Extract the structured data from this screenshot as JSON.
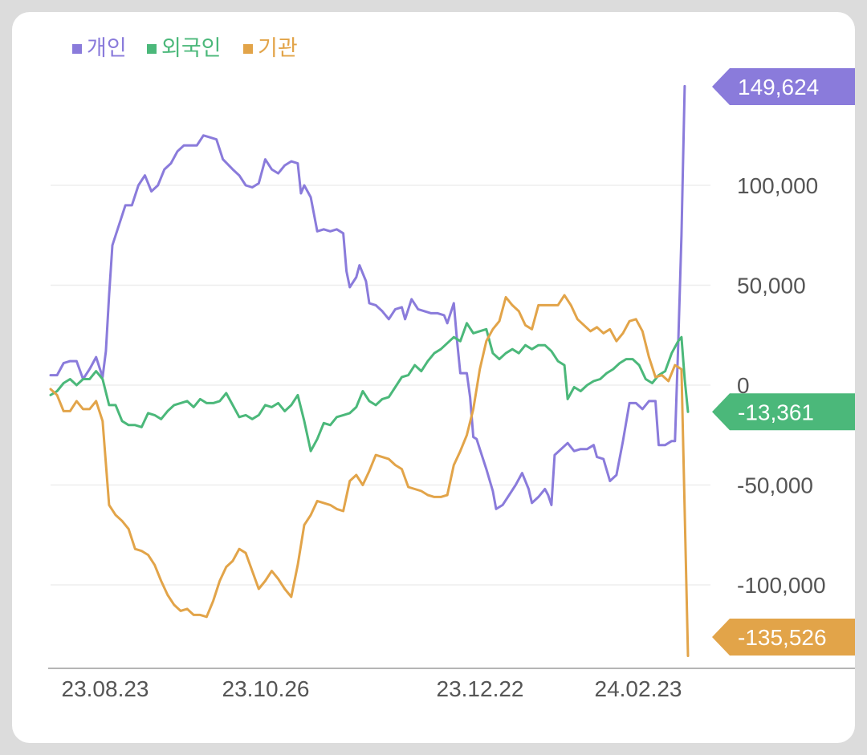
{
  "chart_data": {
    "type": "line",
    "legend_position": "top-left",
    "grid": true,
    "ylim": [
      -140000,
      150000
    ],
    "y_ticks": [
      {
        "value": 100000,
        "label": "100,000"
      },
      {
        "value": 50000,
        "label": "50,000"
      },
      {
        "value": 0,
        "label": "0"
      },
      {
        "value": -50000,
        "label": "-50,000"
      },
      {
        "value": -100000,
        "label": "-100,000"
      }
    ],
    "x_ticks": [
      {
        "index": 0,
        "label": "23.08.23"
      },
      {
        "index": 45,
        "label": "23.10.26"
      },
      {
        "index": 100,
        "label": "23.12.22"
      },
      {
        "index": 140,
        "label": "24.02.23"
      }
    ],
    "n_points": 165,
    "series": [
      {
        "name": "개인",
        "color": "#8a7bdb",
        "last_label": "149,624",
        "keypoints": [
          [
            0,
            5000
          ],
          [
            2,
            5000
          ],
          [
            4,
            11000
          ],
          [
            6,
            12000
          ],
          [
            8,
            12000
          ],
          [
            10,
            3000
          ],
          [
            12,
            8000
          ],
          [
            14,
            14000
          ],
          [
            16,
            4000
          ],
          [
            17,
            17000
          ],
          [
            18,
            45000
          ],
          [
            19,
            70000
          ],
          [
            21,
            80000
          ],
          [
            23,
            90000
          ],
          [
            25,
            90000
          ],
          [
            27,
            100000
          ],
          [
            29,
            105000
          ],
          [
            31,
            97000
          ],
          [
            33,
            100000
          ],
          [
            35,
            108000
          ],
          [
            37,
            111000
          ],
          [
            39,
            117000
          ],
          [
            41,
            120000
          ],
          [
            43,
            120000
          ],
          [
            45,
            120000
          ],
          [
            47,
            125000
          ],
          [
            49,
            124000
          ],
          [
            51,
            123000
          ],
          [
            53,
            113000
          ],
          [
            56,
            108000
          ],
          [
            58,
            105000
          ],
          [
            60,
            100000
          ],
          [
            62,
            99000
          ],
          [
            64,
            101000
          ],
          [
            66,
            113000
          ],
          [
            68,
            108000
          ],
          [
            70,
            106000
          ],
          [
            72,
            110000
          ],
          [
            74,
            112000
          ],
          [
            76,
            111000
          ],
          [
            77,
            96000
          ],
          [
            78,
            100000
          ],
          [
            80,
            94000
          ],
          [
            82,
            77000
          ],
          [
            84,
            78000
          ],
          [
            86,
            77000
          ],
          [
            88,
            78000
          ],
          [
            90,
            76000
          ],
          [
            91,
            57000
          ],
          [
            92,
            49000
          ],
          [
            94,
            54000
          ],
          [
            95,
            60000
          ],
          [
            97,
            52000
          ],
          [
            98,
            41000
          ],
          [
            100,
            40000
          ],
          [
            102,
            37000
          ],
          [
            104,
            33000
          ],
          [
            106,
            38000
          ],
          [
            108,
            39000
          ],
          [
            109,
            33000
          ],
          [
            111,
            43000
          ],
          [
            113,
            38000
          ],
          [
            115,
            37000
          ],
          [
            117,
            36000
          ],
          [
            119,
            36000
          ],
          [
            121,
            35000
          ],
          [
            122,
            31000
          ],
          [
            124,
            41000
          ],
          [
            125,
            22000
          ],
          [
            126,
            6000
          ],
          [
            128,
            6000
          ],
          [
            129,
            -6000
          ],
          [
            130,
            -26000
          ],
          [
            131,
            -27000
          ],
          [
            132,
            -32000
          ],
          [
            134,
            -42000
          ],
          [
            136,
            -53000
          ],
          [
            137,
            -62000
          ],
          [
            139,
            -60000
          ],
          [
            141,
            -55000
          ],
          [
            143,
            -50000
          ],
          [
            145,
            -44000
          ],
          [
            147,
            -52000
          ],
          [
            148,
            -59000
          ],
          [
            150,
            -56000
          ],
          [
            152,
            -52000
          ],
          [
            153,
            -55000
          ],
          [
            154,
            -60000
          ],
          [
            155,
            -35000
          ],
          [
            157,
            -32000
          ],
          [
            159,
            -29000
          ],
          [
            161,
            -33000
          ],
          [
            163,
            -32000
          ],
          [
            165,
            -32000
          ],
          [
            167,
            -30000
          ],
          [
            168,
            -36000
          ],
          [
            170,
            -37000
          ],
          [
            172,
            -48000
          ],
          [
            174,
            -45000
          ],
          [
            176,
            -28000
          ],
          [
            178,
            -9000
          ],
          [
            180,
            -9000
          ],
          [
            182,
            -12000
          ],
          [
            184,
            -8000
          ],
          [
            186,
            -8000
          ],
          [
            187,
            -30000
          ],
          [
            189,
            -30000
          ],
          [
            191,
            -28000
          ],
          [
            192,
            -28000
          ],
          [
            193,
            20000
          ],
          [
            194,
            75000
          ],
          [
            195,
            149624
          ]
        ]
      },
      {
        "name": "외국인",
        "color": "#4bb87a",
        "last_label": "-13,361",
        "keypoints": [
          [
            0,
            -5000
          ],
          [
            2,
            -3000
          ],
          [
            4,
            1000
          ],
          [
            6,
            3000
          ],
          [
            8,
            0
          ],
          [
            10,
            3000
          ],
          [
            12,
            3000
          ],
          [
            14,
            7000
          ],
          [
            16,
            3000
          ],
          [
            18,
            -10000
          ],
          [
            20,
            -10000
          ],
          [
            22,
            -18000
          ],
          [
            24,
            -20000
          ],
          [
            26,
            -20000
          ],
          [
            28,
            -21000
          ],
          [
            30,
            -14000
          ],
          [
            32,
            -15000
          ],
          [
            34,
            -17000
          ],
          [
            36,
            -13000
          ],
          [
            38,
            -10000
          ],
          [
            40,
            -9000
          ],
          [
            42,
            -8000
          ],
          [
            44,
            -11000
          ],
          [
            46,
            -7000
          ],
          [
            48,
            -9000
          ],
          [
            50,
            -9000
          ],
          [
            52,
            -8000
          ],
          [
            54,
            -4000
          ],
          [
            56,
            -10000
          ],
          [
            58,
            -16000
          ],
          [
            60,
            -15000
          ],
          [
            62,
            -17000
          ],
          [
            64,
            -15000
          ],
          [
            66,
            -10000
          ],
          [
            68,
            -11000
          ],
          [
            70,
            -9000
          ],
          [
            72,
            -13000
          ],
          [
            74,
            -10000
          ],
          [
            76,
            -5000
          ],
          [
            78,
            -18000
          ],
          [
            80,
            -33000
          ],
          [
            82,
            -27000
          ],
          [
            84,
            -19000
          ],
          [
            86,
            -20000
          ],
          [
            88,
            -16000
          ],
          [
            90,
            -15000
          ],
          [
            92,
            -14000
          ],
          [
            94,
            -11000
          ],
          [
            96,
            -3000
          ],
          [
            98,
            -8000
          ],
          [
            100,
            -10000
          ],
          [
            102,
            -7000
          ],
          [
            104,
            -6000
          ],
          [
            106,
            -1000
          ],
          [
            108,
            4000
          ],
          [
            110,
            5000
          ],
          [
            112,
            10000
          ],
          [
            114,
            7000
          ],
          [
            116,
            12000
          ],
          [
            118,
            16000
          ],
          [
            120,
            18000
          ],
          [
            122,
            21000
          ],
          [
            124,
            24000
          ],
          [
            126,
            22000
          ],
          [
            128,
            31000
          ],
          [
            130,
            26000
          ],
          [
            132,
            27000
          ],
          [
            134,
            28000
          ],
          [
            136,
            16000
          ],
          [
            138,
            13000
          ],
          [
            140,
            16000
          ],
          [
            142,
            18000
          ],
          [
            144,
            16000
          ],
          [
            146,
            20000
          ],
          [
            148,
            18000
          ],
          [
            150,
            20000
          ],
          [
            152,
            20000
          ],
          [
            154,
            17000
          ],
          [
            156,
            12000
          ],
          [
            158,
            10000
          ],
          [
            159,
            -7000
          ],
          [
            161,
            -1000
          ],
          [
            163,
            -3000
          ],
          [
            165,
            0
          ],
          [
            167,
            2000
          ],
          [
            169,
            3000
          ],
          [
            171,
            6000
          ],
          [
            173,
            8000
          ],
          [
            175,
            11000
          ],
          [
            177,
            13000
          ],
          [
            179,
            13000
          ],
          [
            181,
            10000
          ],
          [
            183,
            3000
          ],
          [
            185,
            1000
          ],
          [
            187,
            5000
          ],
          [
            189,
            7000
          ],
          [
            191,
            16000
          ],
          [
            193,
            22000
          ],
          [
            194,
            24000
          ],
          [
            195,
            3000
          ],
          [
            196,
            -13361
          ]
        ]
      },
      {
        "name": "기관",
        "color": "#e2a449",
        "last_label": "-135,526",
        "keypoints": [
          [
            0,
            -2000
          ],
          [
            2,
            -5000
          ],
          [
            4,
            -13000
          ],
          [
            6,
            -13000
          ],
          [
            8,
            -8000
          ],
          [
            10,
            -12000
          ],
          [
            12,
            -12000
          ],
          [
            14,
            -8000
          ],
          [
            16,
            -18000
          ],
          [
            18,
            -60000
          ],
          [
            20,
            -65000
          ],
          [
            22,
            -68000
          ],
          [
            24,
            -72000
          ],
          [
            26,
            -82000
          ],
          [
            28,
            -83000
          ],
          [
            30,
            -85000
          ],
          [
            32,
            -90000
          ],
          [
            34,
            -98000
          ],
          [
            36,
            -105000
          ],
          [
            38,
            -110000
          ],
          [
            40,
            -113000
          ],
          [
            42,
            -112000
          ],
          [
            44,
            -115000
          ],
          [
            46,
            -115000
          ],
          [
            48,
            -116000
          ],
          [
            50,
            -108000
          ],
          [
            52,
            -98000
          ],
          [
            54,
            -91000
          ],
          [
            56,
            -88000
          ],
          [
            58,
            -82000
          ],
          [
            60,
            -84000
          ],
          [
            62,
            -93000
          ],
          [
            64,
            -102000
          ],
          [
            66,
            -98000
          ],
          [
            68,
            -93000
          ],
          [
            70,
            -97000
          ],
          [
            72,
            -102000
          ],
          [
            74,
            -106000
          ],
          [
            76,
            -90000
          ],
          [
            78,
            -70000
          ],
          [
            80,
            -65000
          ],
          [
            82,
            -58000
          ],
          [
            84,
            -59000
          ],
          [
            86,
            -60000
          ],
          [
            88,
            -62000
          ],
          [
            90,
            -63000
          ],
          [
            92,
            -48000
          ],
          [
            94,
            -45000
          ],
          [
            96,
            -50000
          ],
          [
            98,
            -43000
          ],
          [
            100,
            -35000
          ],
          [
            102,
            -36000
          ],
          [
            104,
            -37000
          ],
          [
            106,
            -40000
          ],
          [
            108,
            -42000
          ],
          [
            110,
            -51000
          ],
          [
            112,
            -52000
          ],
          [
            114,
            -53000
          ],
          [
            116,
            -55000
          ],
          [
            118,
            -56000
          ],
          [
            120,
            -56000
          ],
          [
            122,
            -55000
          ],
          [
            124,
            -40000
          ],
          [
            126,
            -33000
          ],
          [
            128,
            -25000
          ],
          [
            130,
            -12000
          ],
          [
            132,
            8000
          ],
          [
            134,
            22000
          ],
          [
            136,
            28000
          ],
          [
            138,
            32000
          ],
          [
            140,
            44000
          ],
          [
            142,
            40000
          ],
          [
            144,
            37000
          ],
          [
            146,
            30000
          ],
          [
            148,
            28000
          ],
          [
            150,
            40000
          ],
          [
            152,
            40000
          ],
          [
            154,
            40000
          ],
          [
            156,
            40000
          ],
          [
            158,
            45000
          ],
          [
            160,
            40000
          ],
          [
            162,
            33000
          ],
          [
            164,
            30000
          ],
          [
            166,
            27000
          ],
          [
            168,
            29000
          ],
          [
            170,
            26000
          ],
          [
            172,
            28000
          ],
          [
            174,
            22000
          ],
          [
            176,
            26000
          ],
          [
            178,
            32000
          ],
          [
            180,
            33000
          ],
          [
            182,
            27000
          ],
          [
            184,
            14000
          ],
          [
            186,
            4000
          ],
          [
            188,
            5000
          ],
          [
            190,
            2000
          ],
          [
            192,
            10000
          ],
          [
            194,
            8000
          ],
          [
            196,
            -135526
          ]
        ]
      }
    ]
  }
}
